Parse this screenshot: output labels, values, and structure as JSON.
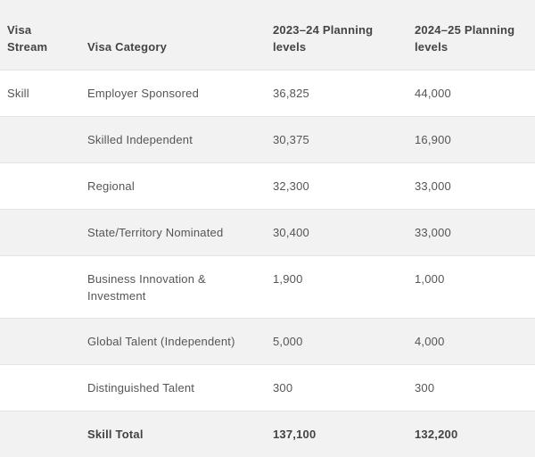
{
  "table": {
    "headers": {
      "stream": "Visa Stream",
      "category": "Visa Category",
      "level_2023": "2023–24 Planning levels",
      "level_2024": "2024–25 Planning levels"
    },
    "rows": [
      {
        "stream": "Skill",
        "category": "Employer Sponsored",
        "level_2023": "36,825",
        "level_2024": "44,000"
      },
      {
        "stream": "",
        "category": "Skilled Independent",
        "level_2023": "30,375",
        "level_2024": "16,900"
      },
      {
        "stream": "",
        "category": "Regional",
        "level_2023": "32,300",
        "level_2024": "33,000"
      },
      {
        "stream": "",
        "category": "State/Territory Nominated",
        "level_2023": "30,400",
        "level_2024": "33,000"
      },
      {
        "stream": "",
        "category": "Business Innovation & Investment",
        "level_2023": "1,900",
        "level_2024": "1,000"
      },
      {
        "stream": "",
        "category": "Global Talent (Independent)",
        "level_2023": "5,000",
        "level_2024": "4,000"
      },
      {
        "stream": "",
        "category": "Distinguished Talent",
        "level_2023": "300",
        "level_2024": "300"
      },
      {
        "stream": "",
        "category": "Skill Total",
        "level_2023": "137,100",
        "level_2024": "132,200"
      }
    ]
  }
}
